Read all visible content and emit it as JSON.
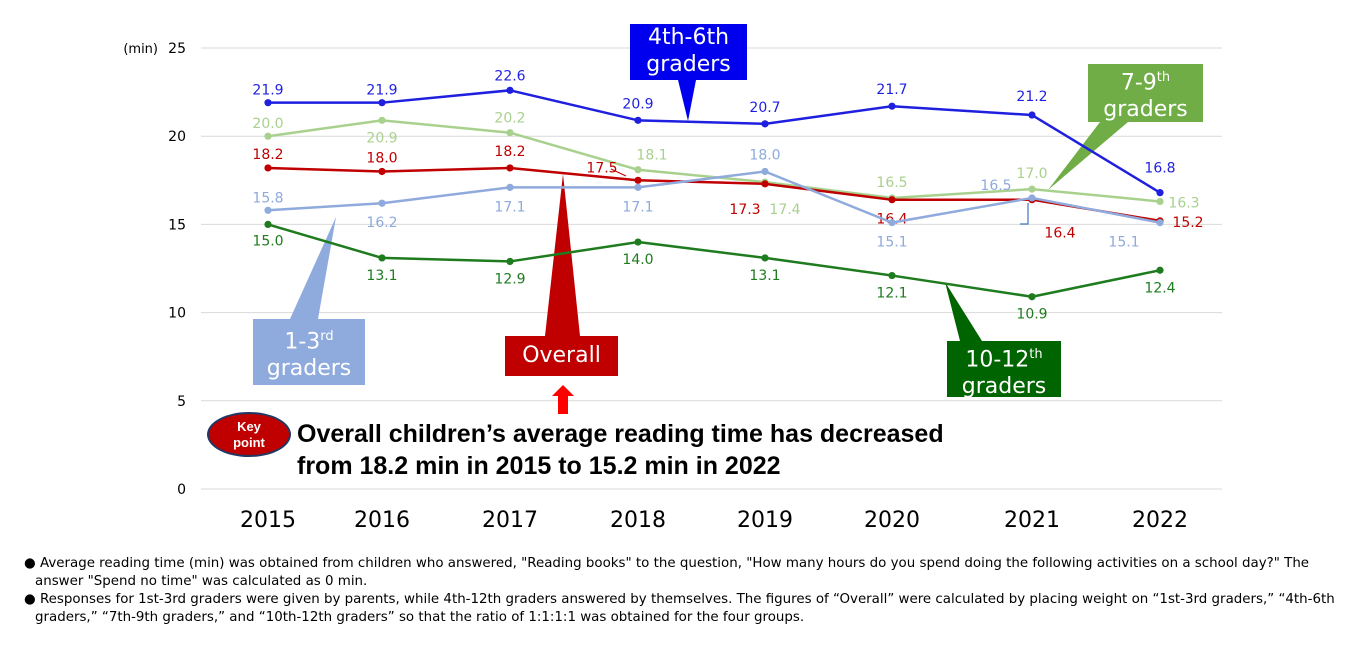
{
  "chart_data": {
    "type": "line",
    "x": [
      2015,
      2016,
      2017,
      2018,
      2019,
      2020,
      2021,
      2022
    ],
    "x_tick_labels": [
      "2015",
      "2016",
      "2017",
      "2018",
      "2019",
      "2020",
      "2021",
      "2022"
    ],
    "ylim": [
      0,
      25
    ],
    "y_ticks": [
      0,
      5,
      10,
      15,
      20,
      25
    ],
    "y_tick_labels": [
      "0",
      "5",
      "10",
      "15",
      "20",
      "25"
    ],
    "y_unit": "(min)",
    "grid": true,
    "series": [
      {
        "key": "g46",
        "color": "#1f1fe0",
        "values": [
          21.9,
          21.9,
          22.6,
          20.9,
          20.7,
          21.7,
          21.2,
          16.8
        ],
        "labels": [
          "21.9",
          "21.9",
          "22.6",
          "20.9",
          "20.7",
          "21.7",
          "21.2",
          "16.8"
        ]
      },
      {
        "key": "g79",
        "color": "#a9d18e",
        "values": [
          20.0,
          20.9,
          20.2,
          18.1,
          17.4,
          16.5,
          17.0,
          16.3
        ],
        "labels": [
          "20.0",
          "20.9",
          "20.2",
          "18.1",
          "17.4",
          "16.5",
          "17.0",
          "16.3"
        ]
      },
      {
        "key": "overall",
        "color": "#c00000",
        "values": [
          18.2,
          18.0,
          18.2,
          17.5,
          17.3,
          16.4,
          16.4,
          15.2
        ],
        "labels": [
          "18.2",
          "18.0",
          "18.2",
          "17.5",
          "17.3",
          "16.4",
          "16.4",
          "15.2"
        ]
      },
      {
        "key": "g13",
        "color": "#8faadc",
        "values": [
          15.8,
          16.2,
          17.1,
          17.1,
          18.0,
          15.1,
          16.5,
          15.1
        ],
        "labels": [
          "15.8",
          "16.2",
          "17.1",
          "17.1",
          "18.0",
          "15.1",
          "16.5",
          "15.1"
        ]
      },
      {
        "key": "g1012",
        "color": "#1e7b1e",
        "values": [
          15.0,
          13.1,
          12.9,
          14.0,
          13.1,
          12.1,
          10.9,
          12.4
        ],
        "labels": [
          "15.0",
          "13.1",
          "12.9",
          "14.0",
          "13.1",
          "12.1",
          "10.9",
          "12.4"
        ]
      }
    ]
  },
  "callouts": {
    "g46": {
      "line1": "4th-6th",
      "line2": "graders",
      "color": "#0000ee"
    },
    "g79": {
      "line1": "7-9",
      "sup": "th",
      "line2": "graders",
      "color": "#70ad47"
    },
    "g13": {
      "line1": "1-3",
      "sup": "rd",
      "line2": "graders",
      "color": "#8faadc"
    },
    "overall": {
      "line1": "Overall",
      "color": "#c00000"
    },
    "g1012": {
      "line1": "10-12",
      "sup": "th",
      "line2": "graders",
      "color": "#006400"
    }
  },
  "key_point": {
    "badge_line1": "Key",
    "badge_line2": "point",
    "line1": "Overall children’s average reading time has decreased",
    "line2": "from 18.2 min in 2015 to 15.2 min in 2022"
  },
  "notes": [
    "● Average reading time (min) was obtained from children who answered, \"Reading books\" to the question, \"How many hours do you spend doing the following activities on a school day?\" The answer \"Spend no time\" was calculated as 0 min.",
    "● Responses for 1st-3rd graders were given by parents, while 4th-12th graders answered by themselves. The figures of “Overall” were calculated by placing weight on “1st-3rd graders,” “4th-6th graders,” “7th-9th graders,” and “10th-12th graders” so that the ratio of 1:1:1:1 was obtained for the four groups."
  ]
}
